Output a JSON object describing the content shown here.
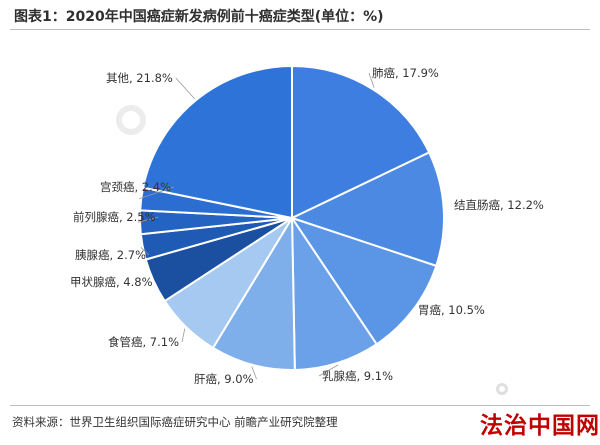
{
  "header": {
    "title": "图表1：2020年中国癌症新发病例前十癌症类型(单位：%)"
  },
  "chart_data": {
    "type": "pie",
    "title": "图表1：2020年中国癌症新发病例前十癌症类型(单位：%)",
    "unit": "%",
    "slices": [
      {
        "label": "肺癌",
        "value": 17.9,
        "display": "肺癌, 17.9%",
        "color": "#3d7ee0"
      },
      {
        "label": "结直肠癌",
        "value": 12.2,
        "display": "结直肠癌, 12.2%",
        "color": "#4c89e3"
      },
      {
        "label": "胃癌",
        "value": 10.5,
        "display": "胃癌, 10.5%",
        "color": "#5b95e6"
      },
      {
        "label": "乳腺癌",
        "value": 9.1,
        "display": "乳腺癌, 9.1%",
        "color": "#6ba1e8"
      },
      {
        "label": "肝癌",
        "value": 9.0,
        "display": "肝癌, 9.0%",
        "color": "#7fafeb"
      },
      {
        "label": "食管癌",
        "value": 7.1,
        "display": "食管癌, 7.1%",
        "color": "#a6c9f2"
      },
      {
        "label": "甲状腺癌",
        "value": 4.8,
        "display": "甲状腺癌, 4.8%",
        "color": "#1b4fa0"
      },
      {
        "label": "胰腺癌",
        "value": 2.7,
        "display": "胰腺癌, 2.7%",
        "color": "#1f5ab5"
      },
      {
        "label": "前列腺癌",
        "value": 2.5,
        "display": "前列腺癌, 2.5%",
        "color": "#2463c2"
      },
      {
        "label": "宫颈癌",
        "value": 2.4,
        "display": "宫颈癌, 2.4%",
        "color": "#2b6dd0"
      },
      {
        "label": "其他",
        "value": 21.8,
        "display": "其他, 21.8%",
        "color": "#2e74d8"
      }
    ],
    "legend": "none"
  },
  "footer": {
    "source": "资料来源：世界卫生组织国际癌症研究中心 前瞻产业研究院整理",
    "site_logo": "法治中国网"
  },
  "watermark": {
    "icon": "qianzhan-logo-icon"
  }
}
